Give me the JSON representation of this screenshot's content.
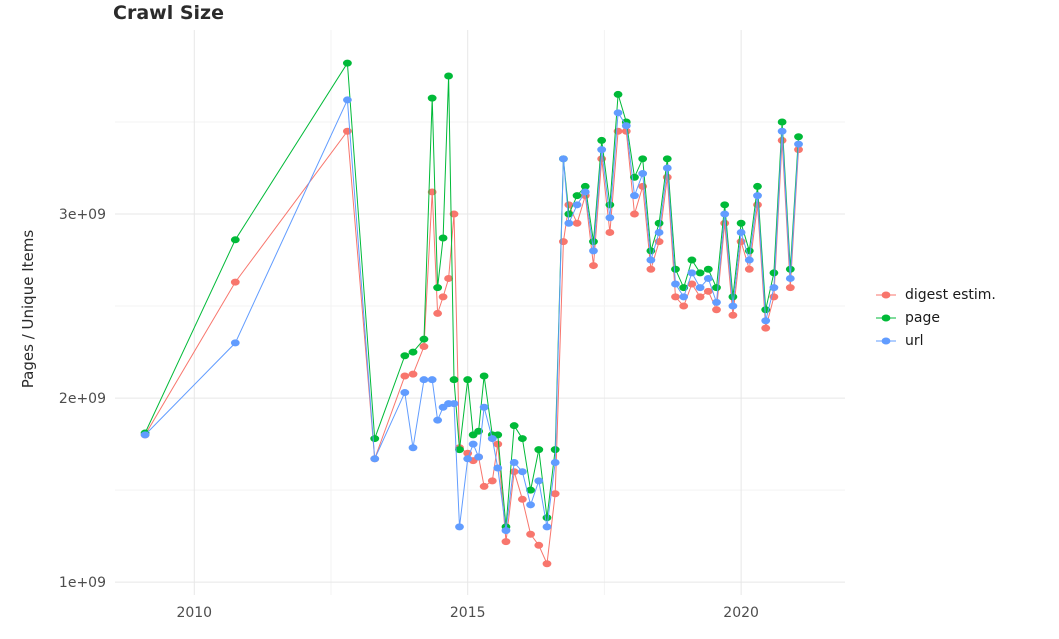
{
  "chart_data": {
    "type": "line",
    "title": "Crawl Size",
    "xlabel": "",
    "ylabel": "Pages / Unique Items",
    "legend_position": "right",
    "grid": true,
    "xlim": [
      2008.55,
      2021.9
    ],
    "ylim_billions": [
      0.93,
      4.0
    ],
    "x_ticks": {
      "values": [
        2010,
        2015,
        2020
      ],
      "labels": [
        "2010",
        "2015",
        "2020"
      ]
    },
    "y_ticks": {
      "values_billions": [
        1,
        2,
        3
      ],
      "labels": [
        "1e+09",
        "2e+09",
        "3e+09"
      ]
    },
    "x_minor_gridlines": [
      2012.5,
      2017.5
    ],
    "y_minor_gridlines_billions": [
      1.5,
      2.5,
      3.5
    ],
    "units": "pages / unique items (billions, 1e9)",
    "x": [
      2009.1,
      2010.75,
      2012.8,
      2013.3,
      2013.85,
      2014.0,
      2014.2,
      2014.35,
      2014.45,
      2014.55,
      2014.65,
      2014.75,
      2014.85,
      2015.0,
      2015.1,
      2015.2,
      2015.3,
      2015.45,
      2015.55,
      2015.7,
      2015.85,
      2016.0,
      2016.15,
      2016.3,
      2016.45,
      2016.6,
      2016.75,
      2016.85,
      2017.0,
      2017.15,
      2017.3,
      2017.45,
      2017.6,
      2017.75,
      2017.9,
      2018.05,
      2018.2,
      2018.35,
      2018.5,
      2018.65,
      2018.8,
      2018.95,
      2019.1,
      2019.25,
      2019.4,
      2019.55,
      2019.7,
      2019.85,
      2020.0,
      2020.15,
      2020.3,
      2020.45,
      2020.6,
      2020.75,
      2020.9,
      2021.05
    ],
    "series": [
      {
        "name": "digest estim.",
        "color": "#F8766D",
        "values_billions": [
          1.8,
          2.63,
          3.45,
          1.67,
          2.12,
          2.13,
          2.28,
          3.12,
          2.46,
          2.55,
          2.65,
          3.0,
          1.73,
          1.7,
          1.66,
          1.68,
          1.52,
          1.55,
          1.75,
          1.22,
          1.6,
          1.45,
          1.26,
          1.2,
          1.1,
          1.48,
          2.85,
          3.05,
          2.95,
          3.1,
          2.72,
          3.3,
          2.9,
          3.45,
          3.45,
          3.0,
          3.15,
          2.7,
          2.85,
          3.2,
          2.55,
          2.5,
          2.62,
          2.55,
          2.58,
          2.48,
          2.95,
          2.45,
          2.85,
          2.7,
          3.05,
          2.38,
          2.55,
          3.4,
          2.6,
          3.35
        ]
      },
      {
        "name": "page",
        "color": "#00BA38",
        "values_billions": [
          1.81,
          2.86,
          3.82,
          1.78,
          2.23,
          2.25,
          2.32,
          3.63,
          2.6,
          2.87,
          3.75,
          2.1,
          1.72,
          2.1,
          1.8,
          1.82,
          2.12,
          1.8,
          1.8,
          1.3,
          1.85,
          1.78,
          1.5,
          1.72,
          1.35,
          1.72,
          3.3,
          3.0,
          3.1,
          3.15,
          2.85,
          3.4,
          3.05,
          3.65,
          3.5,
          3.2,
          3.3,
          2.8,
          2.95,
          3.3,
          2.7,
          2.6,
          2.75,
          2.68,
          2.7,
          2.6,
          3.05,
          2.55,
          2.95,
          2.8,
          3.15,
          2.48,
          2.68,
          3.5,
          2.7,
          3.42
        ]
      },
      {
        "name": "url",
        "color": "#619CFF",
        "values_billions": [
          1.8,
          2.3,
          3.62,
          1.67,
          2.03,
          1.73,
          2.1,
          2.1,
          1.88,
          1.95,
          1.97,
          1.97,
          1.3,
          1.67,
          1.75,
          1.68,
          1.95,
          1.78,
          1.62,
          1.28,
          1.65,
          1.6,
          1.42,
          1.55,
          1.3,
          1.65,
          3.3,
          2.95,
          3.05,
          3.12,
          2.8,
          3.35,
          2.98,
          3.55,
          3.48,
          3.1,
          3.22,
          2.75,
          2.9,
          3.25,
          2.62,
          2.55,
          2.68,
          2.6,
          2.65,
          2.52,
          3.0,
          2.5,
          2.9,
          2.75,
          3.1,
          2.42,
          2.6,
          3.45,
          2.65,
          3.38
        ]
      }
    ],
    "style": {
      "grid_major_color": "#e7e7e7",
      "grid_minor_color": "#f3f3f3",
      "background": "#ffffff"
    }
  }
}
